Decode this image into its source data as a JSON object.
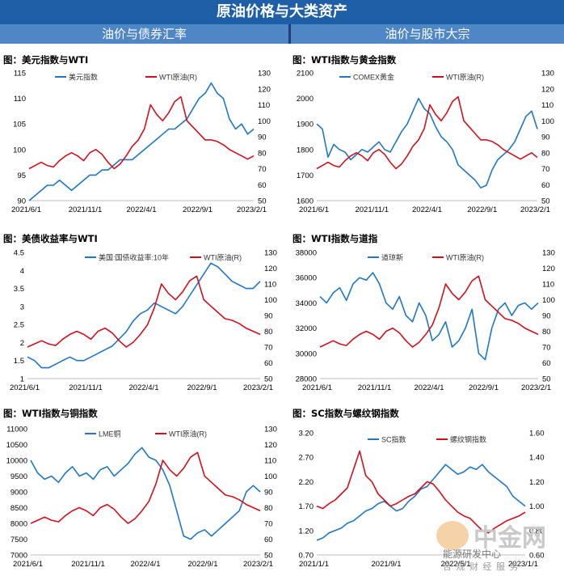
{
  "header": {
    "title": "原油价格与大类资产",
    "left_section": "油价与债券汇率",
    "right_section": "油价与股市大宗"
  },
  "watermark": {
    "brand": "中金网",
    "line1": "能源研发中心",
    "line2": "合 规 财 经 服 务"
  },
  "chart_data": [
    {
      "type": "line",
      "title": "图：美元指数与WTI",
      "x_ticks": [
        "2021/6/1",
        "2021/11/1",
        "2022/4/1",
        "2022/9/1",
        "2023/2/1"
      ],
      "y_left_ticks": [
        "90",
        "95",
        "100",
        "105",
        "110",
        "115"
      ],
      "ylim_left": [
        90,
        115
      ],
      "y_right_ticks": [
        "50",
        "60",
        "70",
        "80",
        "90",
        "100",
        "110",
        "120",
        "130"
      ],
      "ylim_right": [
        50,
        130
      ],
      "series": [
        {
          "name": "美元指数",
          "axis": "left",
          "color": "#1f77c4",
          "values": [
            90,
            91,
            92,
            93,
            93,
            94,
            93,
            92,
            93,
            94,
            95,
            95,
            96,
            96,
            97,
            98,
            98,
            98,
            99,
            100,
            101,
            102,
            103,
            104,
            104,
            105,
            106,
            108,
            110,
            111,
            113,
            111,
            110,
            106,
            104,
            105,
            103,
            104
          ]
        },
        {
          "name": "WTI原油(R)",
          "axis": "right",
          "color": "#d0101c",
          "values": [
            70,
            72,
            74,
            72,
            71,
            75,
            78,
            80,
            78,
            75,
            80,
            82,
            79,
            74,
            70,
            73,
            78,
            84,
            88,
            95,
            110,
            104,
            100,
            105,
            112,
            115,
            100,
            96,
            92,
            88,
            88,
            87,
            85,
            82,
            80,
            78,
            76,
            78
          ]
        }
      ]
    },
    {
      "type": "line",
      "title": "图：WTI指数与黄金指数",
      "x_ticks": [
        "2021/6/1",
        "2021/11/1",
        "2022/4/1",
        "2022/9/1",
        "2023/2/1"
      ],
      "y_left_ticks": [
        "1600",
        "1700",
        "1800",
        "1900",
        "2000",
        "2100"
      ],
      "ylim_left": [
        1600,
        2100
      ],
      "y_right_ticks": [
        "50",
        "60",
        "70",
        "80",
        "90",
        "100",
        "110",
        "120",
        "130"
      ],
      "ylim_right": [
        50,
        130
      ],
      "series": [
        {
          "name": "COMEX黄金",
          "axis": "left",
          "color": "#1f77c4",
          "values": [
            1900,
            1880,
            1770,
            1820,
            1800,
            1790,
            1760,
            1780,
            1800,
            1790,
            1810,
            1830,
            1800,
            1790,
            1830,
            1870,
            1900,
            1950,
            2000,
            1960,
            1940,
            1890,
            1850,
            1830,
            1800,
            1740,
            1720,
            1700,
            1680,
            1650,
            1660,
            1720,
            1760,
            1780,
            1800,
            1830,
            1880,
            1930,
            1950,
            1880
          ]
        },
        {
          "name": "WTI原油(R)",
          "axis": "right",
          "color": "#d0101c",
          "values": [
            70,
            72,
            74,
            72,
            71,
            75,
            78,
            80,
            78,
            75,
            80,
            82,
            79,
            74,
            70,
            73,
            78,
            84,
            88,
            95,
            110,
            104,
            100,
            105,
            112,
            115,
            100,
            96,
            92,
            88,
            88,
            87,
            85,
            82,
            80,
            78,
            76,
            78,
            80,
            77
          ]
        }
      ]
    },
    {
      "type": "line",
      "title": "图：美债收益率与WTI",
      "x_ticks": [
        "2021/6/1",
        "2021/11/1",
        "2022/4/1",
        "2022/9/1",
        "2023/2/1"
      ],
      "y_left_ticks": [
        "1",
        "1.5",
        "2",
        "2.5",
        "3",
        "3.5",
        "4",
        "4.5"
      ],
      "ylim_left": [
        1,
        4.5
      ],
      "y_right_ticks": [
        "50",
        "60",
        "70",
        "80",
        "90",
        "100",
        "110",
        "120",
        "130"
      ],
      "ylim_right": [
        50,
        130
      ],
      "series": [
        {
          "name": "美国:国债收益率:10年",
          "axis": "left",
          "color": "#1f77c4",
          "values": [
            1.6,
            1.5,
            1.3,
            1.3,
            1.4,
            1.5,
            1.6,
            1.5,
            1.5,
            1.6,
            1.7,
            1.8,
            1.9,
            2.1,
            2.3,
            2.6,
            2.8,
            2.9,
            3.1,
            3.0,
            2.9,
            2.8,
            3.0,
            3.3,
            3.6,
            3.9,
            4.2,
            4.1,
            3.9,
            3.7,
            3.6,
            3.5,
            3.5,
            3.7
          ]
        },
        {
          "name": "WTI原油(R)",
          "axis": "right",
          "color": "#d0101c",
          "values": [
            70,
            72,
            74,
            72,
            71,
            75,
            78,
            80,
            78,
            75,
            80,
            82,
            79,
            74,
            70,
            73,
            78,
            84,
            95,
            110,
            104,
            100,
            105,
            112,
            115,
            100,
            96,
            92,
            88,
            87,
            85,
            82,
            80,
            78
          ]
        }
      ]
    },
    {
      "type": "line",
      "title": "图：WTI指数与道指",
      "x_ticks": [
        "2021/6/1",
        "2021/11/1",
        "2022/4/1",
        "2022/9/1",
        "2023/2/1"
      ],
      "y_left_ticks": [
        "28000",
        "30000",
        "32000",
        "34000",
        "36000",
        "38000"
      ],
      "ylim_left": [
        28000,
        38000
      ],
      "y_right_ticks": [
        "50",
        "60",
        "70",
        "80",
        "90",
        "100",
        "110",
        "120",
        "130"
      ],
      "ylim_right": [
        50,
        130
      ],
      "series": [
        {
          "name": "道琼斯",
          "axis": "left",
          "color": "#1f77c4",
          "values": [
            34500,
            34000,
            34800,
            35200,
            34200,
            35500,
            36000,
            35800,
            36400,
            35500,
            34000,
            33500,
            34500,
            33000,
            32500,
            34000,
            33000,
            31000,
            31500,
            32500,
            30500,
            31000,
            32000,
            33500,
            30000,
            29500,
            32000,
            33500,
            34000,
            33000,
            33800,
            34000,
            33500,
            34000
          ]
        },
        {
          "name": "WTI原油(R)",
          "axis": "right",
          "color": "#d0101c",
          "values": [
            70,
            72,
            74,
            72,
            71,
            75,
            78,
            80,
            78,
            75,
            80,
            82,
            79,
            74,
            70,
            73,
            78,
            84,
            95,
            110,
            104,
            100,
            105,
            112,
            115,
            100,
            96,
            92,
            88,
            87,
            85,
            82,
            80,
            78
          ]
        }
      ]
    },
    {
      "type": "line",
      "title": "图：WTI指数与铜指数",
      "x_ticks": [
        "2021/6/1",
        "2021/11/1",
        "2022/4/1",
        "2022/9/1",
        "2023/2/1"
      ],
      "y_left_ticks": [
        "7000",
        "7500",
        "8000",
        "8500",
        "9000",
        "9500",
        "10000",
        "10500",
        "11000"
      ],
      "ylim_left": [
        7000,
        11000
      ],
      "y_right_ticks": [
        "50",
        "60",
        "70",
        "80",
        "90",
        "100",
        "110",
        "120",
        "130"
      ],
      "ylim_right": [
        50,
        130
      ],
      "series": [
        {
          "name": "LME铜",
          "axis": "left",
          "color": "#1f77c4",
          "values": [
            10000,
            9600,
            9400,
            9500,
            9300,
            9600,
            9800,
            9500,
            9600,
            9400,
            9700,
            9800,
            9500,
            9700,
            9900,
            10200,
            10400,
            10100,
            10000,
            9700,
            9200,
            8400,
            7600,
            7500,
            7700,
            7800,
            7600,
            7800,
            8000,
            8200,
            8400,
            9000,
            9200,
            9000
          ]
        },
        {
          "name": "WTI原油(R)",
          "axis": "right",
          "color": "#d0101c",
          "values": [
            70,
            72,
            74,
            72,
            71,
            75,
            78,
            80,
            78,
            75,
            80,
            82,
            79,
            74,
            70,
            73,
            78,
            84,
            95,
            110,
            104,
            100,
            105,
            112,
            115,
            100,
            96,
            92,
            88,
            87,
            85,
            82,
            80,
            78
          ]
        }
      ]
    },
    {
      "type": "line",
      "title": "图：SC指数与螺纹钢指数",
      "x_ticks": [
        "2021/1/1",
        "2021/9/1",
        "2022/5/1",
        "2023/1/1"
      ],
      "y_left_ticks": [
        "0.70",
        "1.20",
        "1.70",
        "2.20",
        "2.70",
        "3.20"
      ],
      "ylim_left": [
        0.7,
        3.2
      ],
      "y_right_ticks": [
        "0.60",
        "0.80",
        "1.00",
        "1.20",
        "1.40",
        "1.60"
      ],
      "ylim_right": [
        0.6,
        1.6
      ],
      "series": [
        {
          "name": "SC指数",
          "axis": "left",
          "color": "#1f77c4",
          "values": [
            1.0,
            1.05,
            1.15,
            1.2,
            1.25,
            1.35,
            1.4,
            1.5,
            1.6,
            1.65,
            1.75,
            1.8,
            1.7,
            1.6,
            1.65,
            1.8,
            1.9,
            2.05,
            2.1,
            2.25,
            2.4,
            2.55,
            2.45,
            2.35,
            2.4,
            2.5,
            2.45,
            2.55,
            2.4,
            2.3,
            2.2,
            2.1,
            1.9,
            1.8,
            1.7
          ]
        },
        {
          "name": "螺纹钢指数",
          "axis": "right",
          "color": "#d0101c",
          "values": [
            1.0,
            0.98,
            1.02,
            1.05,
            1.1,
            1.15,
            1.3,
            1.45,
            1.25,
            1.2,
            1.1,
            1.05,
            1.0,
            1.02,
            1.05,
            1.08,
            1.1,
            1.15,
            1.2,
            1.18,
            1.12,
            1.05,
            1.0,
            0.95,
            0.92,
            0.9,
            0.85,
            0.8,
            0.78,
            0.82,
            0.85,
            0.88,
            0.9,
            0.92,
            0.95
          ]
        }
      ]
    }
  ]
}
